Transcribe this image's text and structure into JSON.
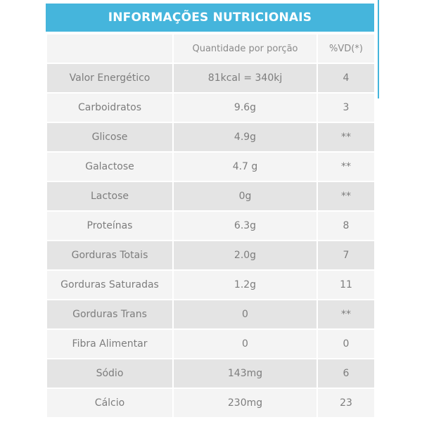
{
  "header": {
    "title": "INFORMAÇÕES NUTRICIONAIS"
  },
  "table": {
    "columns": [
      "Quantidade por porção",
      "%VD(*)"
    ],
    "rows": [
      [
        "Valor Energético",
        "81kcal = 340kj",
        "4"
      ],
      [
        "Carboidratos",
        "9.6g",
        "3"
      ],
      [
        "Glicose",
        "4.9g",
        "**"
      ],
      [
        "Galactose",
        "4.7 g",
        "**"
      ],
      [
        "Lactose",
        "0g",
        "**"
      ],
      [
        "Proteínas",
        "6.3g",
        "8"
      ],
      [
        "Gorduras Totais",
        "2.0g",
        "7"
      ],
      [
        "Gorduras Saturadas",
        "1.2g",
        "11"
      ],
      [
        "Gorduras Trans",
        "0",
        "**"
      ],
      [
        "Fibra Alimentar",
        "0",
        "0"
      ],
      [
        "Sódio",
        "143mg",
        "6"
      ],
      [
        "Cálcio",
        "230mg",
        "23"
      ]
    ]
  }
}
